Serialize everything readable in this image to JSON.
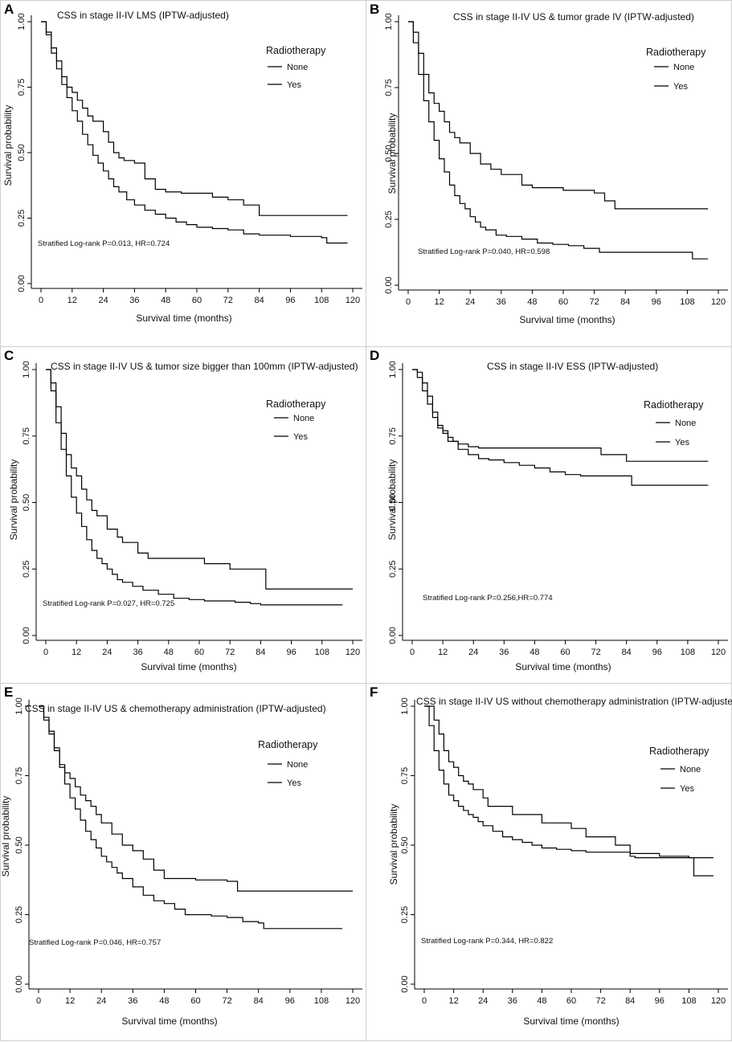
{
  "chart_data": [
    {
      "id": "A",
      "type": "line",
      "panel_label": "A",
      "title": "CSS in stage II-IV LMS (IPTW-adjusted)",
      "xlabel": "Survival time (months)",
      "ylabel": "Survival probability",
      "xticks": [
        "0",
        "12",
        "24",
        "36",
        "48",
        "60",
        "72",
        "84",
        "96",
        "108",
        "120"
      ],
      "yticks": [
        "0.00",
        "0.25",
        "0.50",
        "0.75",
        "1.00"
      ],
      "xlim": [
        0,
        120
      ],
      "ylim": [
        0,
        1
      ],
      "legend_title": "Radiotherapy",
      "legend_items": [
        "None",
        "Yes"
      ],
      "annotation": "Stratified Log-rank P=0.013, HR=0.724",
      "series": [
        {
          "name": "None",
          "x": [
            0,
            2,
            4,
            6,
            8,
            10,
            12,
            14,
            16,
            18,
            20,
            22,
            24,
            26,
            28,
            30,
            33,
            36,
            40,
            44,
            48,
            52,
            56,
            60,
            66,
            72,
            78,
            84,
            96,
            108,
            110,
            118
          ],
          "y": [
            1.0,
            0.95,
            0.88,
            0.82,
            0.76,
            0.71,
            0.66,
            0.62,
            0.57,
            0.53,
            0.49,
            0.46,
            0.43,
            0.4,
            0.37,
            0.35,
            0.32,
            0.3,
            0.28,
            0.265,
            0.25,
            0.235,
            0.225,
            0.215,
            0.21,
            0.205,
            0.19,
            0.185,
            0.18,
            0.175,
            0.155,
            0.155
          ]
        },
        {
          "name": "Yes",
          "x": [
            0,
            2,
            4,
            6,
            8,
            10,
            12,
            14,
            16,
            18,
            20,
            24,
            26,
            28,
            30,
            32,
            36,
            40,
            44,
            48,
            54,
            60,
            66,
            72,
            78,
            84,
            96,
            108,
            118
          ],
          "y": [
            1.0,
            0.96,
            0.9,
            0.85,
            0.79,
            0.75,
            0.73,
            0.7,
            0.67,
            0.64,
            0.62,
            0.58,
            0.54,
            0.5,
            0.48,
            0.47,
            0.46,
            0.4,
            0.36,
            0.35,
            0.345,
            0.345,
            0.33,
            0.32,
            0.3,
            0.26,
            0.26,
            0.26,
            0.26
          ]
        }
      ]
    },
    {
      "id": "B",
      "type": "line",
      "panel_label": "B",
      "title": "CSS in stage II-IV US & tumor grade IV (IPTW-adjusted)",
      "xlabel": "Survival time (months)",
      "ylabel": "Survival probability",
      "xticks": [
        "0",
        "12",
        "24",
        "36",
        "48",
        "60",
        "72",
        "84",
        "96",
        "108",
        "120"
      ],
      "yticks": [
        "0.00",
        "0.25",
        "0.50",
        "0.75",
        "1.00"
      ],
      "xlim": [
        0,
        120
      ],
      "ylim": [
        0,
        1
      ],
      "legend_title": "Radiotherapy",
      "legend_items": [
        "None",
        "Yes"
      ],
      "annotation": "Stratified Log-rank P=0.040, HR=0.598",
      "series": [
        {
          "name": "None",
          "x": [
            0,
            2,
            4,
            6,
            8,
            10,
            12,
            14,
            16,
            18,
            20,
            22,
            24,
            26,
            28,
            30,
            34,
            38,
            44,
            50,
            56,
            62,
            68,
            74,
            84,
            96,
            108,
            110,
            116
          ],
          "y": [
            1.0,
            0.92,
            0.8,
            0.7,
            0.62,
            0.55,
            0.48,
            0.43,
            0.38,
            0.34,
            0.31,
            0.29,
            0.26,
            0.24,
            0.22,
            0.21,
            0.19,
            0.185,
            0.175,
            0.16,
            0.155,
            0.15,
            0.14,
            0.125,
            0.125,
            0.125,
            0.125,
            0.1,
            0.1
          ]
        },
        {
          "name": "Yes",
          "x": [
            0,
            2,
            4,
            6,
            8,
            10,
            12,
            14,
            16,
            18,
            20,
            24,
            28,
            32,
            36,
            40,
            44,
            48,
            60,
            72,
            76,
            80,
            96,
            108,
            116
          ],
          "y": [
            1.0,
            0.96,
            0.88,
            0.8,
            0.73,
            0.69,
            0.66,
            0.62,
            0.58,
            0.56,
            0.54,
            0.5,
            0.46,
            0.44,
            0.42,
            0.42,
            0.38,
            0.37,
            0.36,
            0.35,
            0.32,
            0.29,
            0.29,
            0.29,
            0.29
          ]
        }
      ]
    },
    {
      "id": "C",
      "type": "line",
      "panel_label": "C",
      "title": "CSS in stage II-IV US & tumor size bigger than 100mm (IPTW-adjusted)",
      "xlabel": "Survival time (months)",
      "ylabel": "Survival probability",
      "xticks": [
        "0",
        "12",
        "24",
        "36",
        "48",
        "60",
        "72",
        "84",
        "96",
        "108",
        "120"
      ],
      "yticks": [
        "0.00",
        "0.25",
        "0.50",
        "0.75",
        "1.00"
      ],
      "xlim": [
        0,
        120
      ],
      "ylim": [
        0,
        1
      ],
      "legend_title": "Radiotherapy",
      "legend_items": [
        "None",
        "Yes"
      ],
      "annotation": "Stratified Log-rank P=0.027, HR=0.725",
      "series": [
        {
          "name": "None",
          "x": [
            0,
            2,
            4,
            6,
            8,
            10,
            12,
            14,
            16,
            18,
            20,
            22,
            24,
            26,
            28,
            30,
            34,
            38,
            44,
            50,
            56,
            62,
            68,
            74,
            80,
            84,
            96,
            108,
            116
          ],
          "y": [
            1.0,
            0.92,
            0.8,
            0.7,
            0.6,
            0.52,
            0.46,
            0.41,
            0.36,
            0.32,
            0.29,
            0.27,
            0.25,
            0.23,
            0.21,
            0.2,
            0.185,
            0.17,
            0.155,
            0.14,
            0.135,
            0.13,
            0.13,
            0.125,
            0.12,
            0.115,
            0.115,
            0.115,
            0.115
          ]
        },
        {
          "name": "Yes",
          "x": [
            0,
            2,
            4,
            6,
            8,
            10,
            12,
            14,
            16,
            18,
            20,
            24,
            28,
            30,
            32,
            36,
            40,
            44,
            48,
            60,
            62,
            72,
            84,
            86,
            96,
            108,
            120
          ],
          "y": [
            1.0,
            0.95,
            0.86,
            0.76,
            0.68,
            0.63,
            0.6,
            0.55,
            0.51,
            0.47,
            0.45,
            0.4,
            0.37,
            0.35,
            0.35,
            0.31,
            0.29,
            0.29,
            0.29,
            0.29,
            0.27,
            0.25,
            0.25,
            0.175,
            0.175,
            0.175,
            0.175
          ]
        }
      ]
    },
    {
      "id": "D",
      "type": "line",
      "panel_label": "D",
      "title": "CSS in stage II-IV ESS (IPTW-adjusted)",
      "xlabel": "Survival time (months)",
      "ylabel": "Survival probability",
      "xticks": [
        "0",
        "12",
        "24",
        "36",
        "48",
        "60",
        "72",
        "84",
        "96",
        "108",
        "120"
      ],
      "yticks": [
        "0.00",
        "0.25",
        "0.50",
        "0.75",
        "1.00"
      ],
      "xlim": [
        0,
        120
      ],
      "ylim": [
        0,
        1
      ],
      "legend_title": "Radiotherapy",
      "legend_items": [
        "None",
        "Yes"
      ],
      "annotation": "Stratified Log-rank P=0.256,HR=0.774",
      "series": [
        {
          "name": "None",
          "x": [
            0,
            2,
            4,
            6,
            8,
            10,
            12,
            14,
            18,
            22,
            26,
            30,
            36,
            42,
            48,
            54,
            60,
            66,
            72,
            76,
            84,
            86,
            96,
            108,
            116
          ],
          "y": [
            1.0,
            0.97,
            0.92,
            0.87,
            0.82,
            0.79,
            0.76,
            0.73,
            0.7,
            0.68,
            0.665,
            0.66,
            0.65,
            0.64,
            0.63,
            0.615,
            0.605,
            0.6,
            0.6,
            0.6,
            0.6,
            0.565,
            0.565,
            0.565,
            0.565
          ]
        },
        {
          "name": "Yes",
          "x": [
            0,
            2,
            4,
            6,
            8,
            10,
            12,
            14,
            16,
            18,
            22,
            26,
            36,
            48,
            60,
            72,
            74,
            84,
            96,
            108,
            116
          ],
          "y": [
            1.0,
            0.99,
            0.95,
            0.9,
            0.84,
            0.78,
            0.77,
            0.745,
            0.73,
            0.72,
            0.71,
            0.705,
            0.705,
            0.705,
            0.705,
            0.705,
            0.68,
            0.655,
            0.655,
            0.655,
            0.655
          ]
        }
      ]
    },
    {
      "id": "E",
      "type": "line",
      "panel_label": "E",
      "title": "CSS in stage II-IV US & chemotherapy administration (IPTW-adjusted)",
      "xlabel": "Survival time (months)",
      "ylabel": "Survival probability",
      "xticks": [
        "0",
        "12",
        "24",
        "36",
        "48",
        "60",
        "72",
        "84",
        "96",
        "108",
        "120"
      ],
      "yticks": [
        "0.00",
        "0.25",
        "0.50",
        "0.75",
        "1.00"
      ],
      "xlim": [
        0,
        120
      ],
      "ylim": [
        0,
        1
      ],
      "legend_title": "Radiotherapy",
      "legend_items": [
        "None",
        "Yes"
      ],
      "annotation": "Stratified Log-rank P=0.046, HR=0.757",
      "series": [
        {
          "name": "None",
          "x": [
            0,
            2,
            4,
            6,
            8,
            10,
            12,
            14,
            16,
            18,
            20,
            22,
            24,
            26,
            28,
            30,
            32,
            36,
            40,
            44,
            48,
            52,
            56,
            60,
            66,
            72,
            78,
            84,
            86,
            96,
            108,
            116
          ],
          "y": [
            1.0,
            0.95,
            0.9,
            0.84,
            0.78,
            0.72,
            0.67,
            0.63,
            0.59,
            0.55,
            0.52,
            0.49,
            0.46,
            0.44,
            0.42,
            0.4,
            0.38,
            0.35,
            0.32,
            0.3,
            0.29,
            0.27,
            0.25,
            0.25,
            0.245,
            0.24,
            0.225,
            0.22,
            0.2,
            0.2,
            0.2,
            0.2
          ]
        },
        {
          "name": "Yes",
          "x": [
            0,
            2,
            4,
            6,
            8,
            10,
            12,
            14,
            16,
            18,
            20,
            22,
            24,
            28,
            32,
            36,
            40,
            44,
            48,
            60,
            72,
            76,
            84,
            96,
            108,
            120
          ],
          "y": [
            1.0,
            0.96,
            0.91,
            0.85,
            0.79,
            0.76,
            0.74,
            0.71,
            0.68,
            0.66,
            0.64,
            0.61,
            0.58,
            0.54,
            0.5,
            0.48,
            0.45,
            0.41,
            0.38,
            0.375,
            0.37,
            0.335,
            0.335,
            0.335,
            0.335,
            0.335
          ]
        }
      ]
    },
    {
      "id": "F",
      "type": "line",
      "panel_label": "F",
      "title": "CSS in stage II-IV US without chemotherapy administration (IPTW-adjusted)",
      "xlabel": "Survival time (months)",
      "ylabel": "Survival probability",
      "xticks": [
        "0",
        "12",
        "24",
        "36",
        "48",
        "60",
        "72",
        "84",
        "96",
        "108",
        "120"
      ],
      "yticks": [
        "0.00",
        "0.25",
        "0.50",
        "0.75",
        "1.00"
      ],
      "xlim": [
        0,
        120
      ],
      "ylim": [
        0,
        1
      ],
      "legend_title": "Radiotherapy",
      "legend_items": [
        "None",
        "Yes"
      ],
      "annotation": "Stratified Log-rank P=0.344, HR=0.822",
      "series": [
        {
          "name": "None",
          "x": [
            0,
            2,
            4,
            6,
            8,
            10,
            12,
            14,
            16,
            18,
            20,
            22,
            24,
            28,
            32,
            36,
            40,
            44,
            48,
            54,
            60,
            66,
            72,
            78,
            84,
            96,
            108,
            118
          ],
          "y": [
            1.0,
            0.93,
            0.84,
            0.77,
            0.72,
            0.68,
            0.66,
            0.64,
            0.625,
            0.61,
            0.6,
            0.585,
            0.57,
            0.55,
            0.53,
            0.52,
            0.51,
            0.5,
            0.49,
            0.485,
            0.48,
            0.475,
            0.475,
            0.475,
            0.47,
            0.46,
            0.455,
            0.455
          ]
        },
        {
          "name": "Yes",
          "x": [
            0,
            2,
            4,
            6,
            8,
            10,
            12,
            14,
            16,
            18,
            20,
            24,
            26,
            28,
            36,
            48,
            60,
            66,
            72,
            78,
            84,
            86,
            96,
            108,
            110,
            118
          ],
          "y": [
            1.0,
            1.0,
            0.95,
            0.9,
            0.84,
            0.8,
            0.78,
            0.75,
            0.73,
            0.72,
            0.7,
            0.67,
            0.64,
            0.64,
            0.61,
            0.58,
            0.56,
            0.53,
            0.53,
            0.5,
            0.46,
            0.455,
            0.455,
            0.455,
            0.39,
            0.39
          ]
        }
      ]
    }
  ]
}
